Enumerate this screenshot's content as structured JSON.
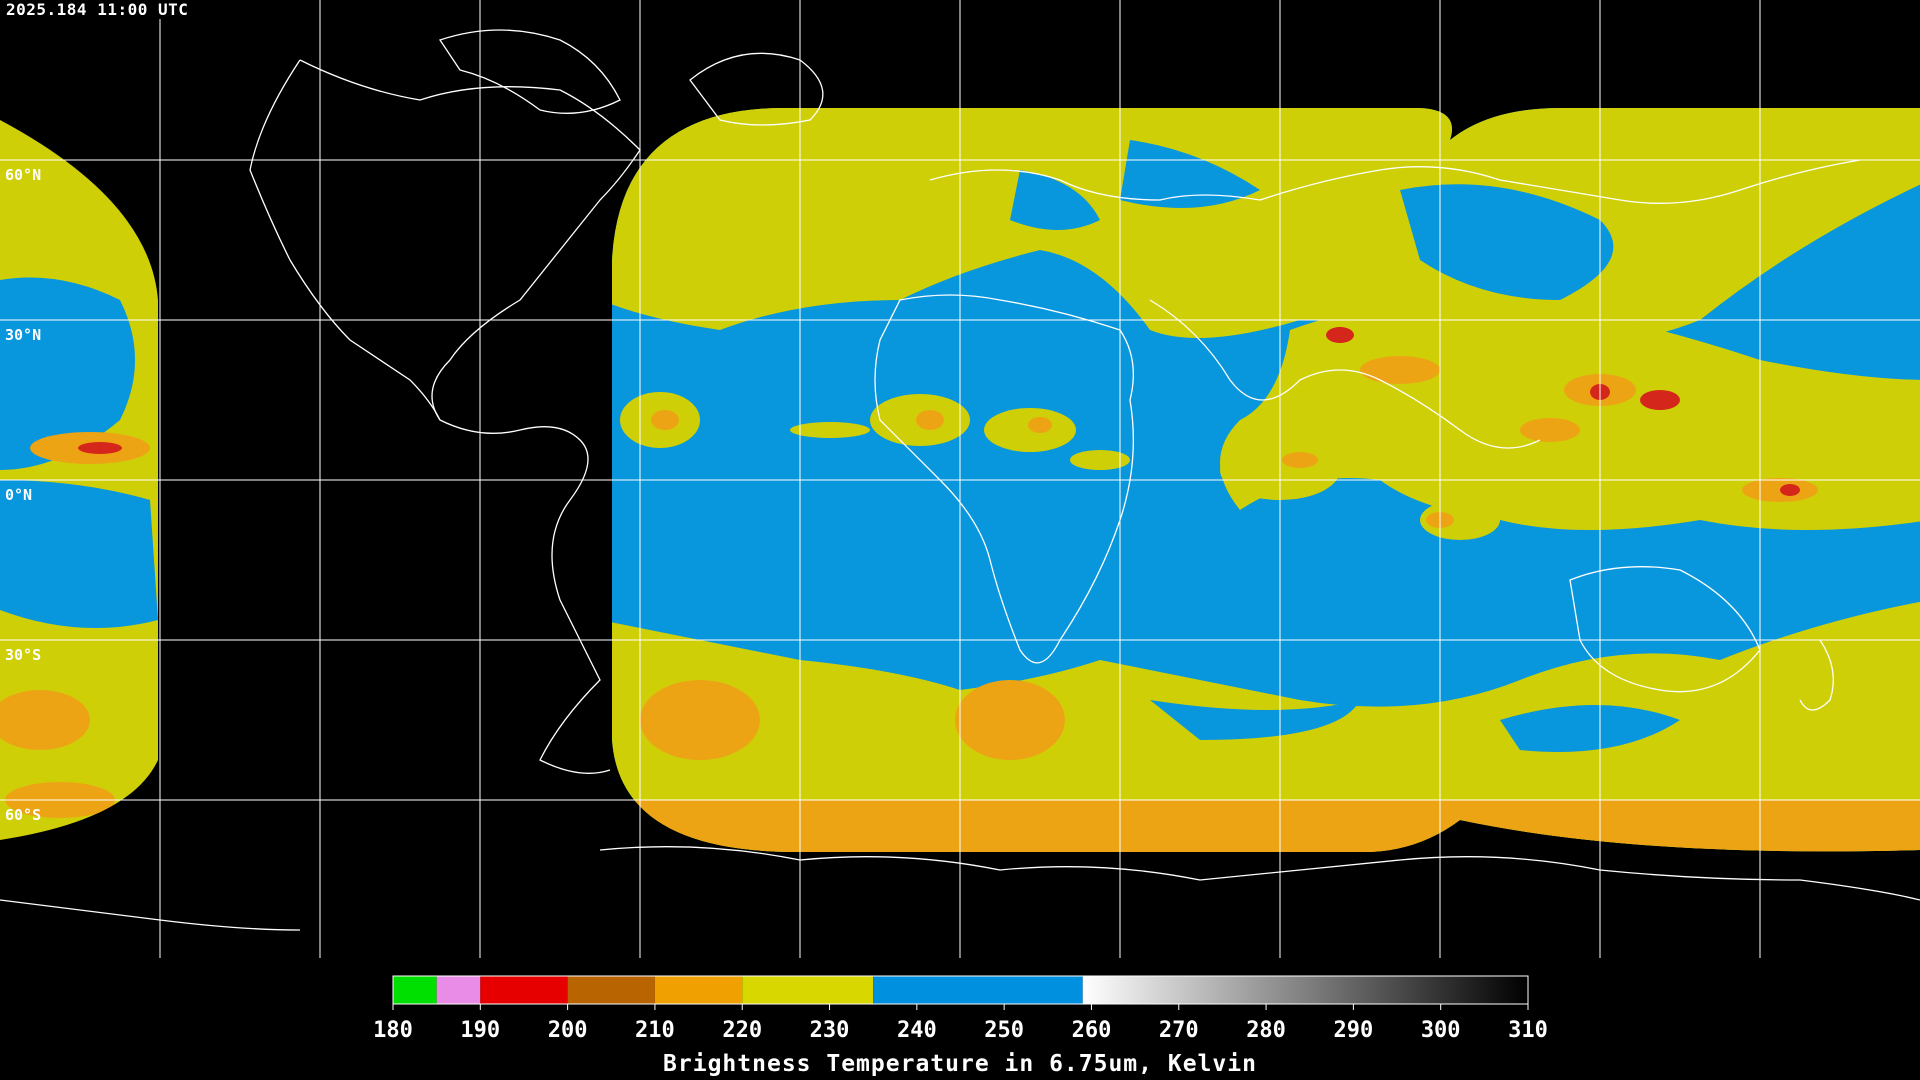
{
  "timestamp": "2025.184 11:00 UTC",
  "latitude_labels": [
    "60°N",
    "30°N",
    "0°N",
    "30°S",
    "60°S"
  ],
  "colorbar": {
    "title": "Brightness Temperature in 6.75um, Kelvin",
    "ticks": [
      "180",
      "190",
      "200",
      "210",
      "220",
      "230",
      "240",
      "250",
      "260",
      "270",
      "280",
      "290",
      "300",
      "310"
    ],
    "segments": [
      {
        "from": 180,
        "to": 185,
        "color": "#00e000"
      },
      {
        "from": 185,
        "to": 190,
        "color": "#e88ce8"
      },
      {
        "from": 190,
        "to": 200,
        "color": "#e60000"
      },
      {
        "from": 200,
        "to": 210,
        "color": "#b86400"
      },
      {
        "from": 210,
        "to": 220,
        "color": "#f0a000"
      },
      {
        "from": 220,
        "to": 235,
        "color": "#d8d800"
      },
      {
        "from": 235,
        "to": 259,
        "color": "#0090e0"
      },
      {
        "from": 259,
        "to": 310,
        "color": "gradient-white-black"
      }
    ]
  },
  "colors": {
    "background": "#000000",
    "grid": "#ffffff",
    "ocean_wv": "#0896dc",
    "cloud_yellow": "#d2d20a",
    "cloud_orange": "#eda414",
    "cloud_red": "#d4261a"
  }
}
